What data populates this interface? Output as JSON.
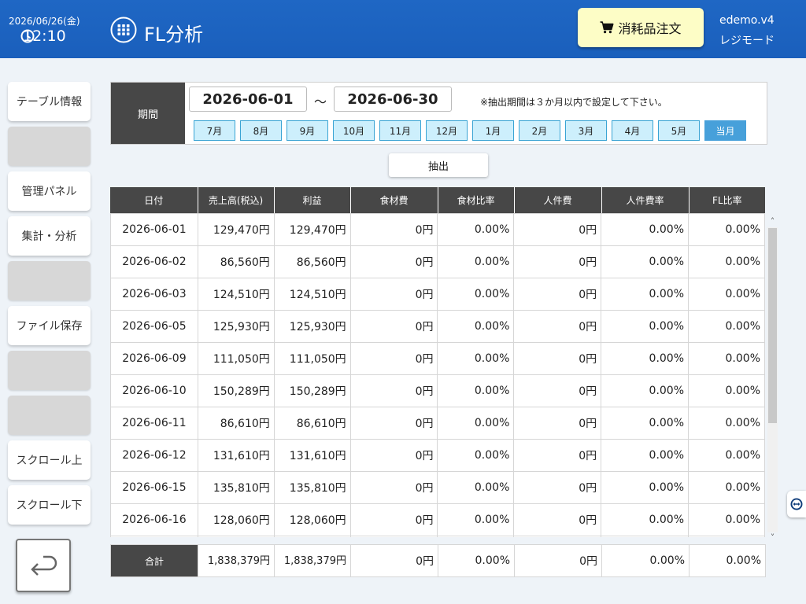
{
  "header": {
    "date": "2026/06/26(金)",
    "time": "12:10",
    "title": "FL分析",
    "order_button": "消耗品注文",
    "user_line1": "edemo.v4",
    "user_line2": "レジモード"
  },
  "sidebar": {
    "items": [
      {
        "label": "テーブル情報"
      },
      {
        "label": ""
      },
      {
        "label": "管理パネル"
      },
      {
        "label": "集計・分析"
      },
      {
        "label": ""
      },
      {
        "label": "ファイル保存"
      },
      {
        "label": ""
      },
      {
        "label": ""
      },
      {
        "label": "スクロール上"
      },
      {
        "label": "スクロール下"
      }
    ]
  },
  "period": {
    "label": "期間",
    "start": "2026-06-01",
    "separator": "～",
    "end": "2026-06-30",
    "note": "※抽出期間は３か月以内で設定して下さい。",
    "months": [
      "7月",
      "8月",
      "9月",
      "10月",
      "11月",
      "12月",
      "1月",
      "2月",
      "3月",
      "4月",
      "5月",
      "当月"
    ],
    "active_month": "当月"
  },
  "extract_button": "抽出",
  "table": {
    "columns": [
      "日付",
      "売上高(税込)",
      "利益",
      "食材費",
      "食材比率",
      "人件費",
      "人件費率",
      "FL比率"
    ],
    "rows": [
      [
        "2026-06-01",
        "129,470円",
        "129,470円",
        "0円",
        "0.00%",
        "0円",
        "0.00%",
        "0.00%"
      ],
      [
        "2026-06-02",
        "86,560円",
        "86,560円",
        "0円",
        "0.00%",
        "0円",
        "0.00%",
        "0.00%"
      ],
      [
        "2026-06-03",
        "124,510円",
        "124,510円",
        "0円",
        "0.00%",
        "0円",
        "0.00%",
        "0.00%"
      ],
      [
        "2026-06-05",
        "125,930円",
        "125,930円",
        "0円",
        "0.00%",
        "0円",
        "0.00%",
        "0.00%"
      ],
      [
        "2026-06-09",
        "111,050円",
        "111,050円",
        "0円",
        "0.00%",
        "0円",
        "0.00%",
        "0.00%"
      ],
      [
        "2026-06-10",
        "150,289円",
        "150,289円",
        "0円",
        "0.00%",
        "0円",
        "0.00%",
        "0.00%"
      ],
      [
        "2026-06-11",
        "86,610円",
        "86,610円",
        "0円",
        "0.00%",
        "0円",
        "0.00%",
        "0.00%"
      ],
      [
        "2026-06-12",
        "131,610円",
        "131,610円",
        "0円",
        "0.00%",
        "0円",
        "0.00%",
        "0.00%"
      ],
      [
        "2026-06-15",
        "135,810円",
        "135,810円",
        "0円",
        "0.00%",
        "0円",
        "0.00%",
        "0.00%"
      ],
      [
        "2026-06-16",
        "128,060円",
        "128,060円",
        "0円",
        "0.00%",
        "0円",
        "0.00%",
        "0.00%"
      ]
    ],
    "total": [
      "合計",
      "1,838,379円",
      "1,838,379円",
      "0円",
      "0.00%",
      "0円",
      "0.00%",
      "0.00%"
    ]
  },
  "colors": {
    "header_bg": "#1f67c4",
    "order_button_bg": "#fdfdc6",
    "table_header_bg": "#474747",
    "month_button_bg": "#cdeffc",
    "month_active_bg": "#47a0da"
  }
}
